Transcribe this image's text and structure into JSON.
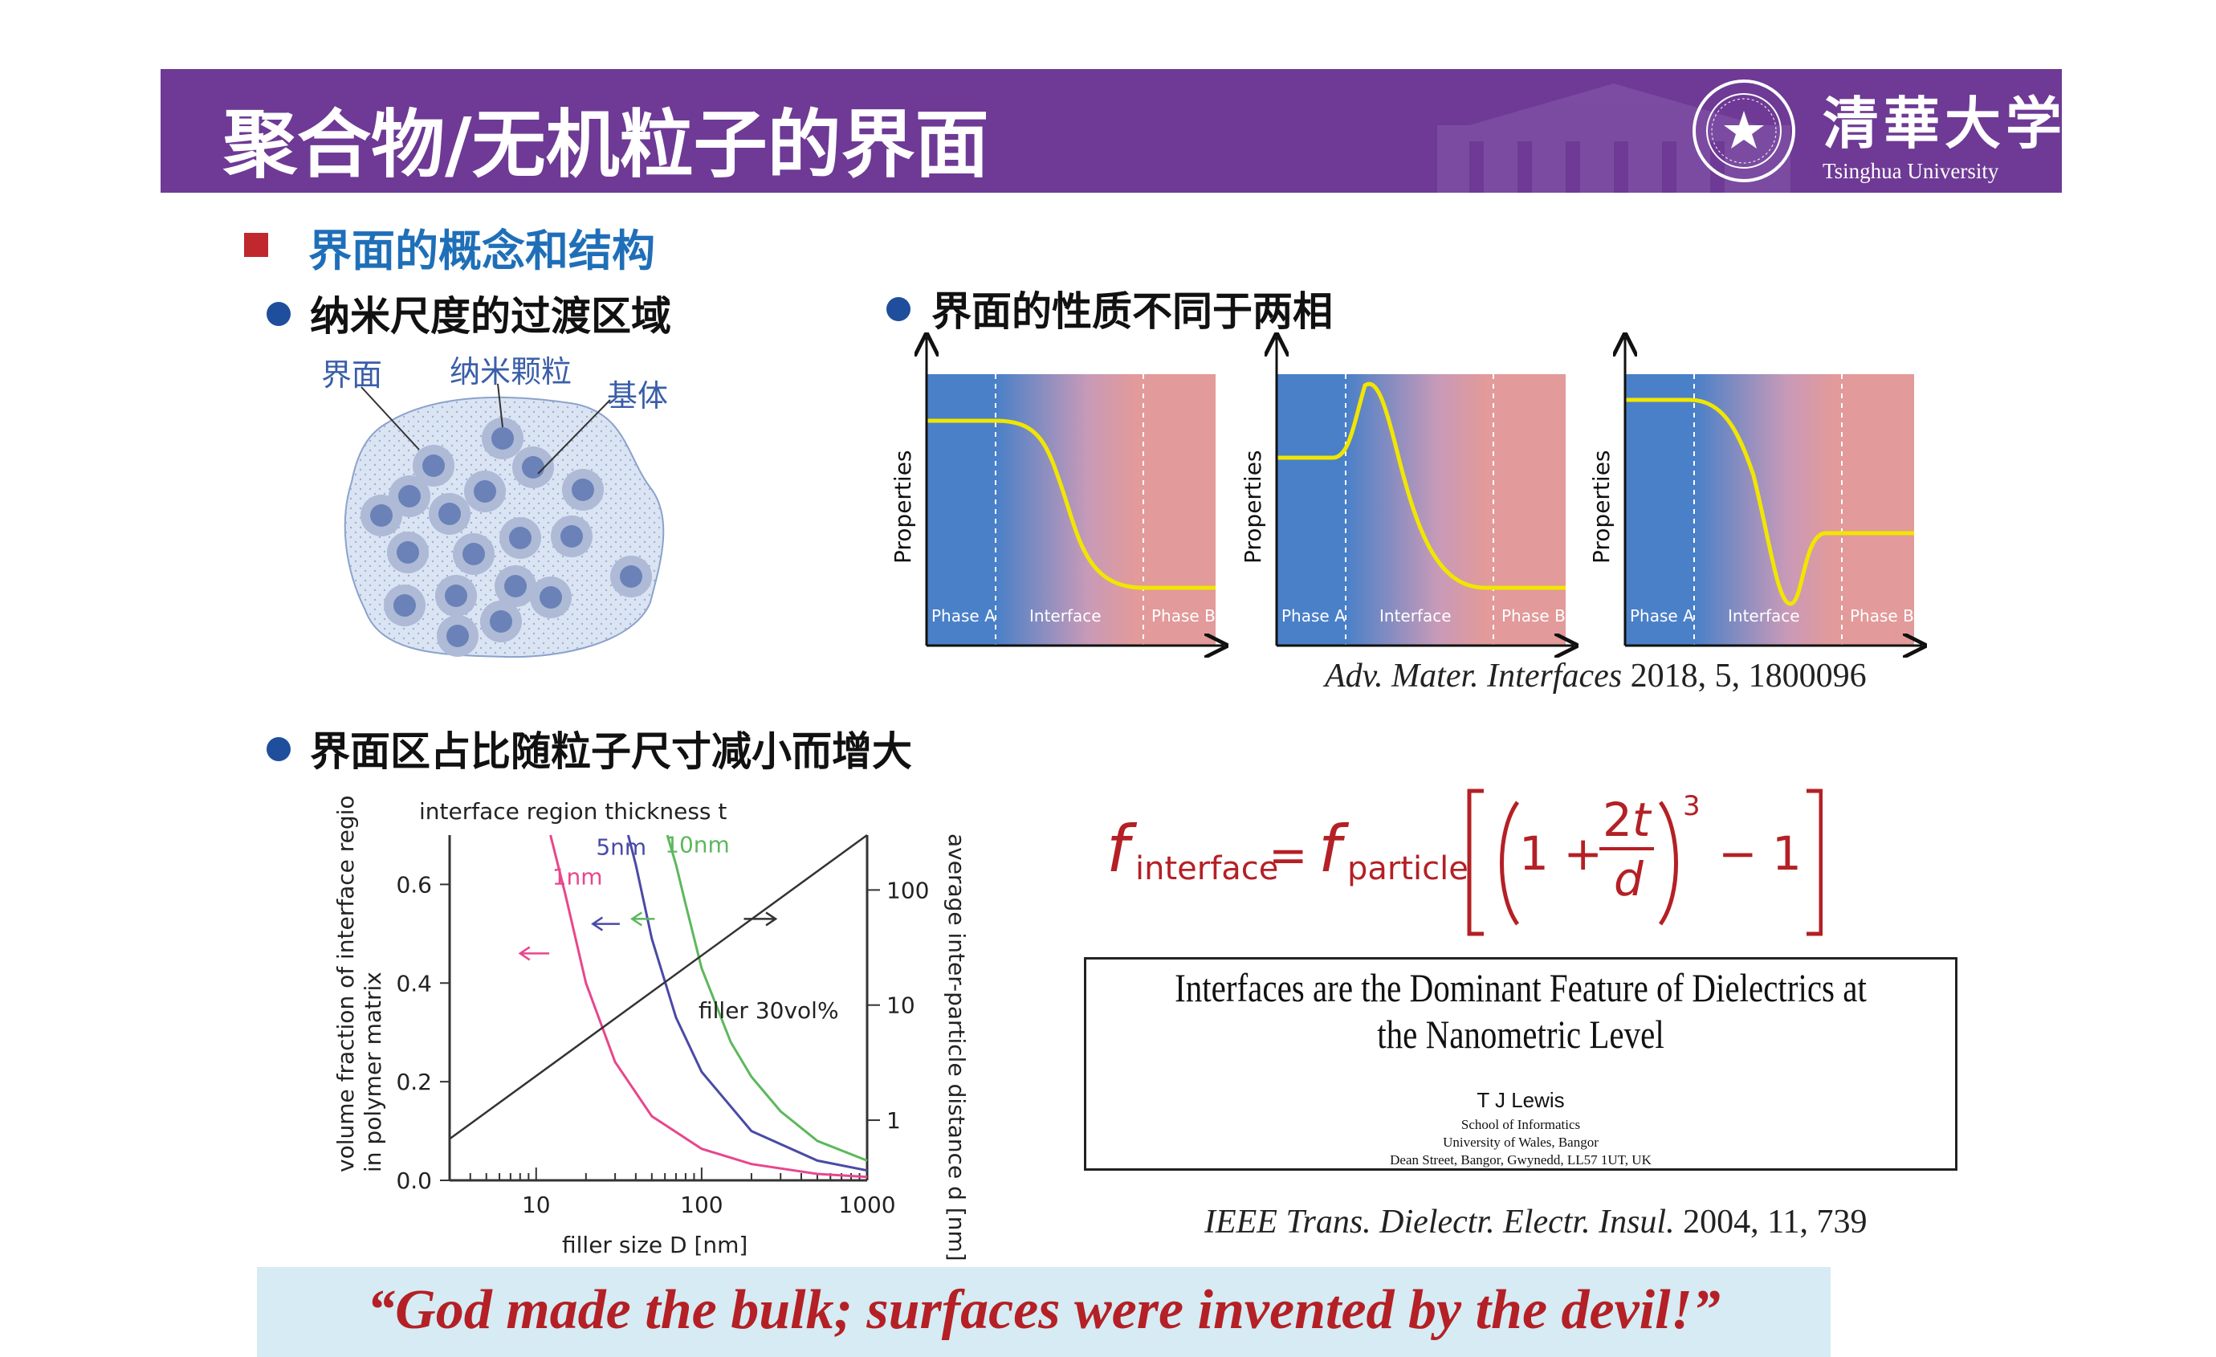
{
  "header": {
    "title": "聚合物/无机粒子的界面",
    "university_cn": "清華大学",
    "university_en": "Tsinghua University"
  },
  "section": {
    "heading": "界面的概念和结构"
  },
  "bullets": {
    "b1": "纳米尺度的过渡区域",
    "b2": "界面的性质不同于两相",
    "b3": "界面区占比随粒子尺寸减小而增大"
  },
  "nano_diagram": {
    "label_interface": "界面",
    "label_particle": "纳米颗粒",
    "label_matrix": "基体"
  },
  "property_plots": {
    "ylabel": "Properties",
    "zones": [
      "Phase A",
      "Interface",
      "Phase B"
    ],
    "citation_journal": "Adv. Mater. Interfaces",
    "citation_rest": " 2018, 5, 1800096",
    "colors": {
      "phase_a": "#4a80c8",
      "phase_b": "#e29a9a",
      "curve": "#f1e600"
    }
  },
  "chart_data": {
    "type": "line",
    "title": "interface region thickness t",
    "xlabel": "filler size D [nm]",
    "ylabel": "volume fraction of interface region in polymer matrix",
    "y2label": "average inter-particle distance d [nm]",
    "x_scale": "log",
    "xlim": [
      3,
      1000
    ],
    "ylim": [
      0,
      0.7
    ],
    "x_ticks": [
      "10",
      "100",
      "1000"
    ],
    "y_ticks": [
      "0.0",
      "0.2",
      "0.4",
      "0.6"
    ],
    "y2_ticks": [
      "1",
      "10",
      "100"
    ],
    "annotation": "filler 30vol%",
    "series": [
      {
        "name": "1nm",
        "color": "#e8468c",
        "x": [
          12.2,
          15,
          20,
          30,
          50,
          100,
          200,
          500,
          1000
        ],
        "y": [
          0.7,
          0.58,
          0.4,
          0.24,
          0.13,
          0.064,
          0.033,
          0.013,
          0.007
        ]
      },
      {
        "name": "5nm",
        "color": "#4a4aa6",
        "x": [
          36,
          40,
          50,
          70,
          100,
          200,
          500,
          1000
        ],
        "y": [
          0.7,
          0.64,
          0.49,
          0.33,
          0.22,
          0.1,
          0.04,
          0.02
        ]
      },
      {
        "name": "10nm",
        "color": "#5cb85c",
        "x": [
          62,
          70,
          80,
          100,
          150,
          200,
          300,
          500,
          1000
        ],
        "y": [
          0.7,
          0.64,
          0.56,
          0.43,
          0.28,
          0.21,
          0.14,
          0.08,
          0.04
        ]
      },
      {
        "name": "d",
        "color": "#333333",
        "x": [
          3,
          1000
        ],
        "y": [
          0.084,
          0.7
        ]
      }
    ]
  },
  "formula": {
    "lhs_sub": "interface",
    "rhs_sub": "particle",
    "exponent": "3",
    "citation_journal": "IEEE Trans. Dielectr. Electr. Insul.",
    "citation_rest": " 2004, 11, 739"
  },
  "paper": {
    "title": "Interfaces are the Dominant Feature of Dielectrics at the Nanometric Level",
    "author": "T J Lewis",
    "aff1": "School of Informatics",
    "aff2": "University of Wales, Bangor",
    "aff3": "Dean Street, Bangor, Gwynedd, LL57 1UT, UK"
  },
  "quote": "“God made the bulk; surfaces were invented by the devil!”"
}
